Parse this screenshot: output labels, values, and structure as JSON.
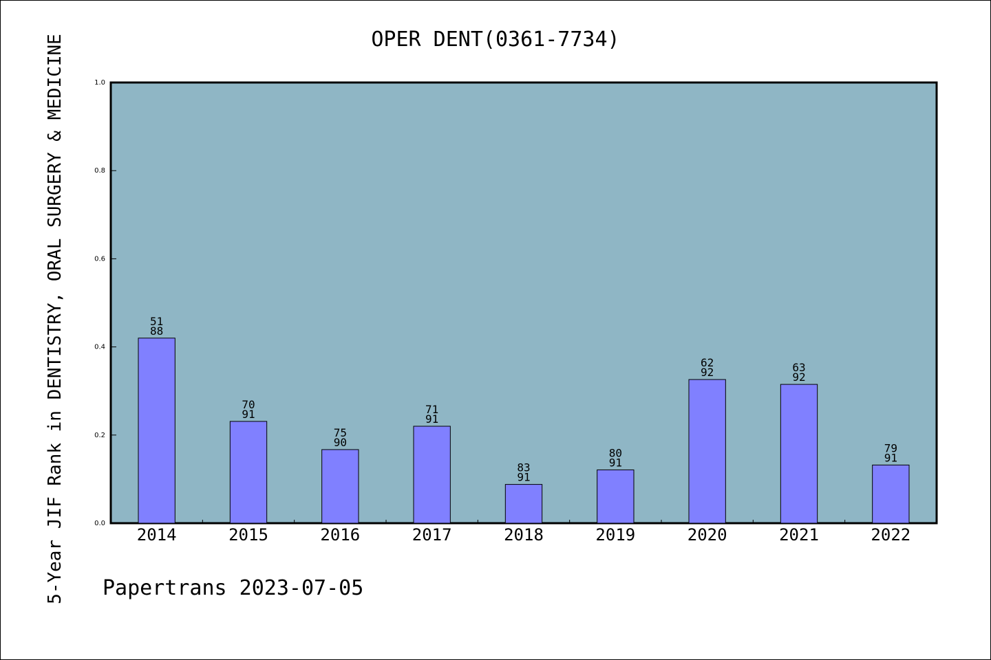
{
  "chart_data": {
    "type": "bar",
    "title": "OPER DENT(0361-7734)",
    "ylabel": "5-Year JIF Rank in DENTISTRY, ORAL SURGERY & MEDICINE",
    "xlabel": "",
    "footer": "Papertrans 2023-07-05",
    "ylim": [
      0,
      1
    ],
    "yticks": [
      "0.0",
      "0.2",
      "0.4",
      "0.6",
      "0.8",
      "1.0"
    ],
    "grid": false,
    "legend": "none",
    "colors": {
      "plot_bg": "#8fb6c5",
      "bar_fill": "#8080ff",
      "bar_stroke": "#000000"
    },
    "categories": [
      "2014",
      "2015",
      "2016",
      "2017",
      "2018",
      "2019",
      "2020",
      "2021",
      "2022"
    ],
    "values": [
      0.42,
      0.231,
      0.167,
      0.22,
      0.088,
      0.121,
      0.326,
      0.315,
      0.132
    ],
    "rank": [
      "51",
      "70",
      "75",
      "71",
      "83",
      "80",
      "62",
      "63",
      "79"
    ],
    "total": [
      "88",
      "91",
      "90",
      "91",
      "91",
      "91",
      "92",
      "92",
      "91"
    ]
  }
}
